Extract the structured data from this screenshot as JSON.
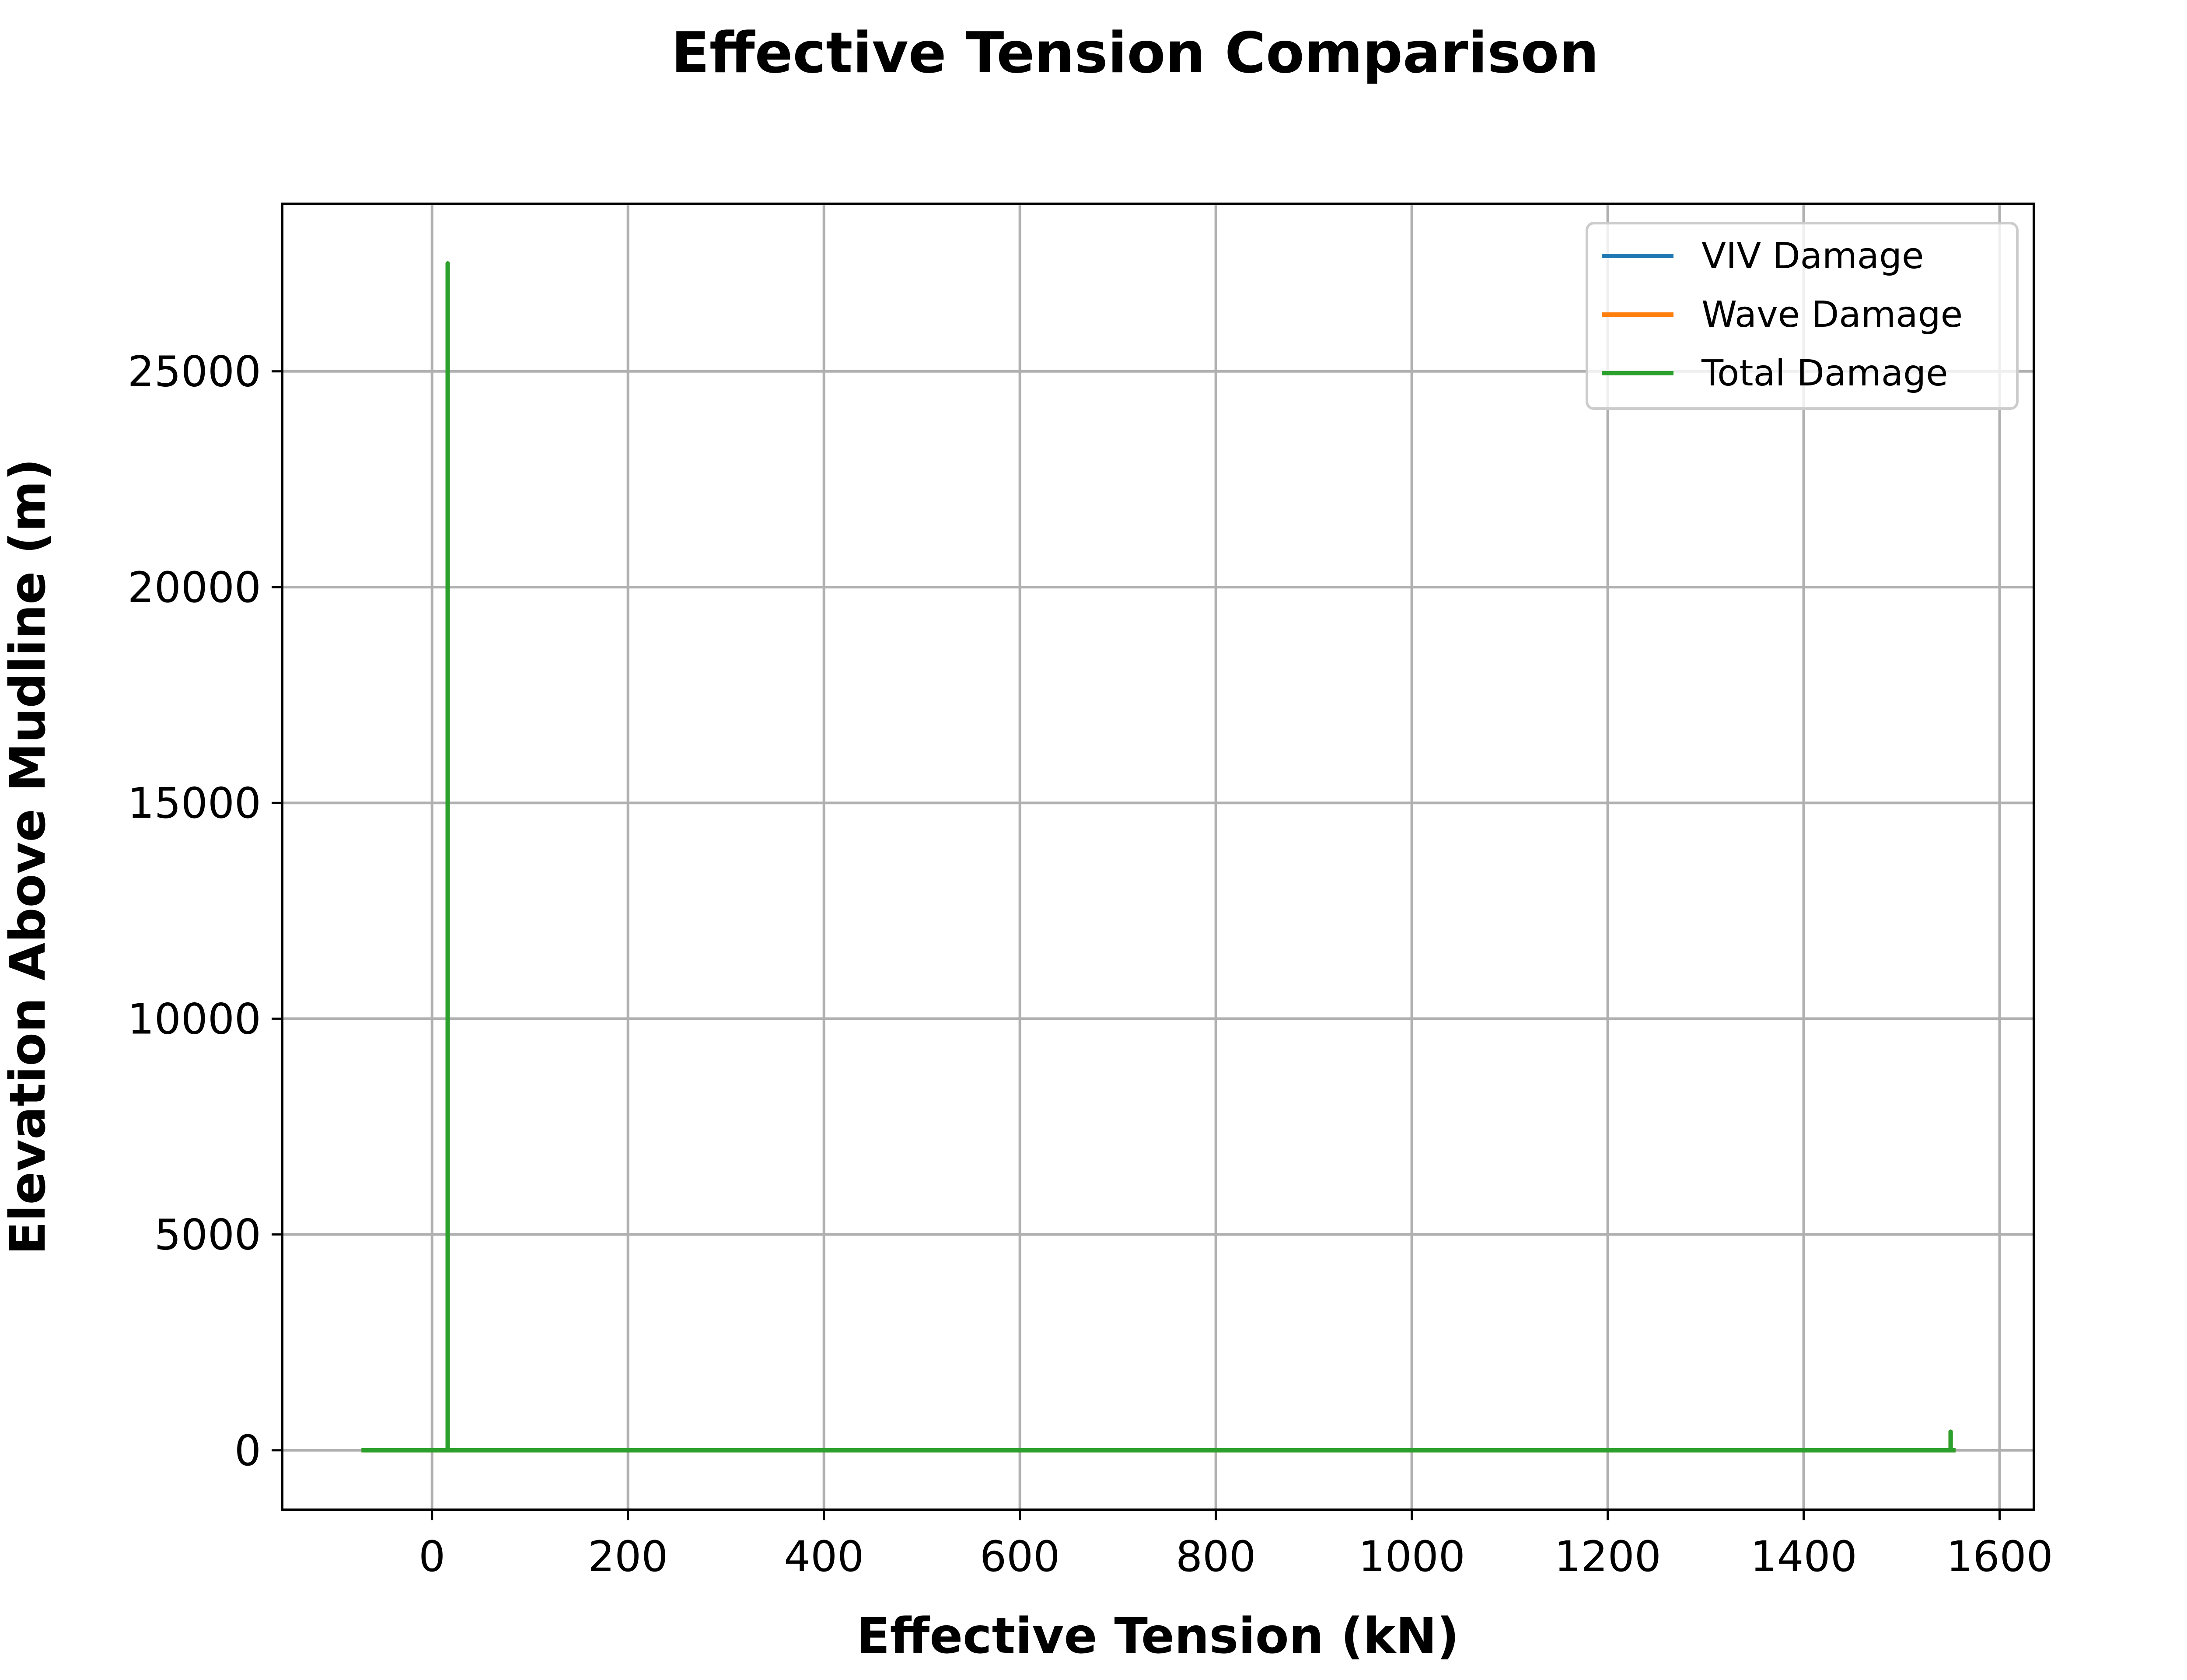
{
  "chart_data": {
    "type": "line",
    "title": "Effective Tension Comparison",
    "xlabel": "Effective Tension (kN)",
    "ylabel": "Elevation Above Mudline (m)",
    "xlim": [
      -153,
      1635
    ],
    "ylim": [
      -1380,
      28880
    ],
    "x_ticks": [
      0,
      200,
      400,
      600,
      800,
      1000,
      1200,
      1400,
      1600
    ],
    "y_ticks": [
      0,
      5000,
      10000,
      15000,
      20000,
      25000
    ],
    "grid": true,
    "legend_position": "top-right",
    "series": [
      {
        "name": "VIV Damage",
        "color": "#1f77b4",
        "x": [
          -72,
          16,
          16,
          16,
          16,
          1550,
          1550,
          1550,
          1555
        ],
        "y": [
          0,
          0,
          27500,
          27500,
          0,
          0,
          430,
          0,
          0
        ]
      },
      {
        "name": "Wave Damage",
        "color": "#ff7f0e",
        "x": [
          -72,
          16,
          16,
          16,
          16,
          1550,
          1550,
          1550,
          1555
        ],
        "y": [
          0,
          0,
          27500,
          27500,
          0,
          0,
          430,
          0,
          0
        ]
      },
      {
        "name": "Total Damage",
        "color": "#2ca02c",
        "x": [
          -72,
          16,
          16,
          16,
          16,
          1550,
          1550,
          1550,
          1555
        ],
        "y": [
          0,
          0,
          27500,
          27500,
          0,
          0,
          430,
          0,
          0
        ]
      }
    ]
  }
}
